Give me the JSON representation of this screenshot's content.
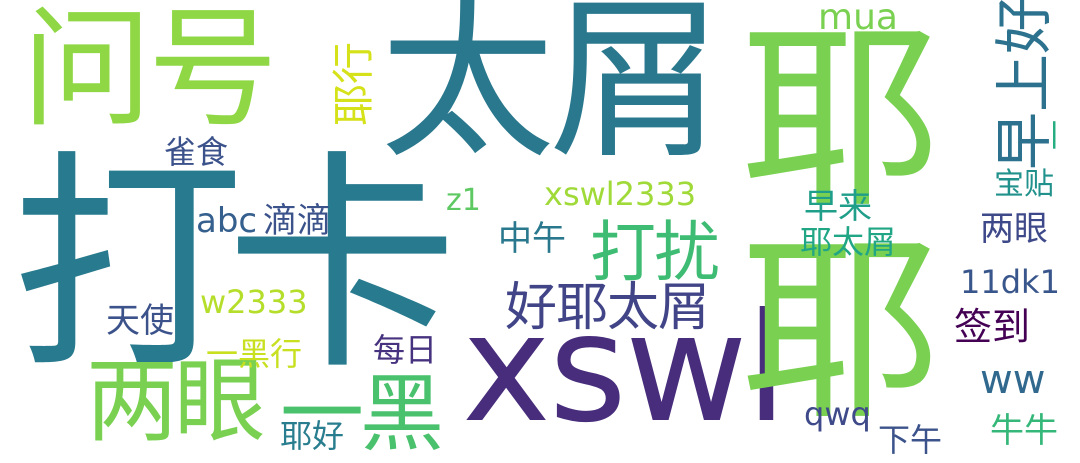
{
  "words": [
    {
      "text": "打卡",
      "color": "#287a8e"
    },
    {
      "text": "太屑",
      "color": "#2a788e"
    },
    {
      "text": "问号",
      "color": "#8fd744"
    },
    {
      "text": "xswl",
      "color": "#472d7b"
    },
    {
      "text": "耶",
      "color": "#7ad151"
    },
    {
      "text": "两眼",
      "color": "#7ad151"
    },
    {
      "text": "一黑",
      "color": "#4ac16d"
    },
    {
      "text": "打扰",
      "color": "#3fbc73"
    },
    {
      "text": "好耶太屑",
      "color": "#414487"
    },
    {
      "text": "早上好",
      "color": "#2c728e"
    },
    {
      "text": "耶行",
      "color": "#d5e21a"
    },
    {
      "text": "雀食",
      "color": "#3b528b"
    },
    {
      "text": "mua",
      "color": "#7ad151"
    },
    {
      "text": "宝贴",
      "color": "#21918c"
    },
    {
      "text": "两眼",
      "color": "#3e4989"
    },
    {
      "text": "z1",
      "color": "#5ec962"
    },
    {
      "text": "xswl2333",
      "color": "#a0da39"
    },
    {
      "text": "abc",
      "color": "#355f8d"
    },
    {
      "text": "滴滴",
      "color": "#3b528b"
    },
    {
      "text": "中午",
      "color": "#2a788e"
    },
    {
      "text": "早来",
      "color": "#1f9e89"
    },
    {
      "text": "耶太屑",
      "color": "#21a685"
    },
    {
      "text": "11dk1",
      "color": "#39568c"
    },
    {
      "text": "签到",
      "color": "#440154"
    },
    {
      "text": "天使",
      "color": "#3b528b"
    },
    {
      "text": "w2333",
      "color": "#b5de2b"
    },
    {
      "text": "一黑行",
      "color": "#c8e020"
    },
    {
      "text": "每日",
      "color": "#46327e"
    },
    {
      "text": "ww",
      "color": "#31688e"
    },
    {
      "text": "耶好",
      "color": "#287d8e"
    },
    {
      "text": "qwq",
      "color": "#3e4a89"
    },
    {
      "text": "下午",
      "color": "#3b528b"
    },
    {
      "text": "牛牛",
      "color": "#35b779"
    },
    {
      "text": "一",
      "color": "#26ad81"
    }
  ]
}
